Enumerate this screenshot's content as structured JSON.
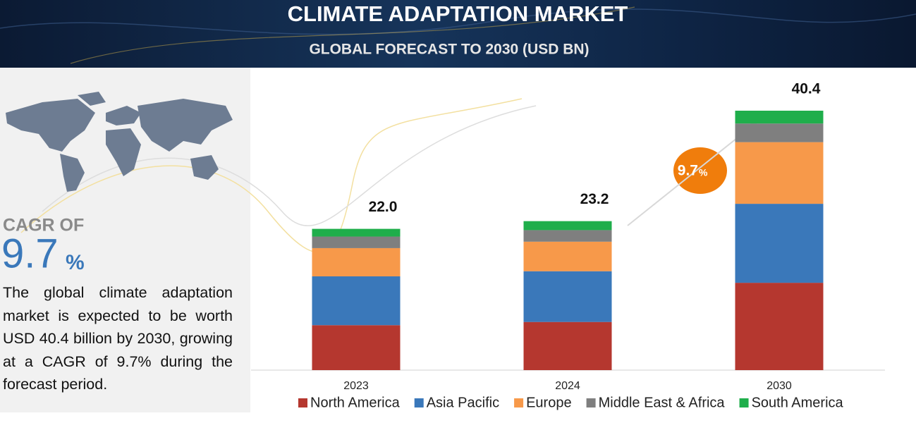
{
  "header": {
    "title": "CLIMATE ADAPTATION MARKET",
    "subtitle": "GLOBAL FORECAST TO 2030  (USD BN)"
  },
  "side": {
    "cagr_label": "CAGR OF",
    "cagr_value": "9.7",
    "cagr_unit": "%",
    "description": "The global climate adaptation market is expected to be worth USD 40.4 billion by 2030, growing at a CAGR of 9.7% during the forecast period."
  },
  "chart_data": {
    "type": "stacked_bar",
    "categories": [
      "2023",
      "2024",
      "2030"
    ],
    "series": [
      {
        "name": "North America",
        "color": "#b5372f",
        "values": [
          7.0,
          7.5,
          13.6
        ]
      },
      {
        "name": "Asia Pacific",
        "color": "#3a78ba",
        "values": [
          7.6,
          7.9,
          12.3
        ]
      },
      {
        "name": "Europe",
        "color": "#f7994a",
        "values": [
          4.4,
          4.6,
          9.6
        ]
      },
      {
        "name": "Middle East & Africa",
        "color": "#7f7f7f",
        "values": [
          1.8,
          1.8,
          2.9
        ]
      },
      {
        "name": "South America",
        "color": "#1fae4b",
        "values": [
          1.2,
          1.4,
          2.0
        ]
      }
    ],
    "totals": {
      "values": [
        22.0,
        23.2,
        40.4
      ],
      "value_labels": [
        "22.0",
        "23.2",
        "40.4"
      ]
    },
    "annotation": {
      "value": "9.7",
      "unit": "%"
    },
    "legend": "bottom"
  }
}
